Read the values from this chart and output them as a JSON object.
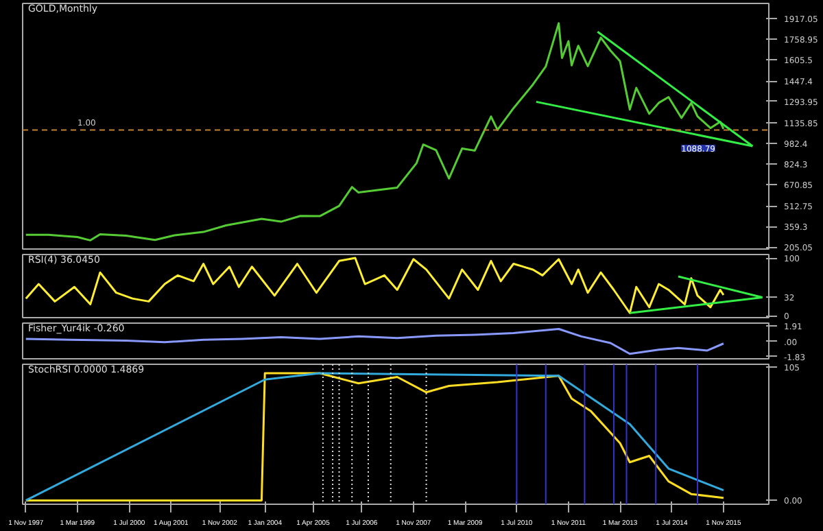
{
  "chart_data": [
    {
      "type": "line",
      "title": "GOLD,Monthly",
      "x": [
        "1997-11",
        "1998-06",
        "1999-03",
        "1999-07",
        "1999-10",
        "2000-06",
        "2001-03",
        "2001-09",
        "2002-06",
        "2003-01",
        "2003-12",
        "2004-06",
        "2004-12",
        "2005-06",
        "2005-12",
        "2006-04",
        "2006-06",
        "2006-12",
        "2007-06",
        "2007-12",
        "2008-02",
        "2008-06",
        "2008-10",
        "2009-02",
        "2009-06",
        "2009-11",
        "2010-01",
        "2010-06",
        "2010-12",
        "2011-04",
        "2011-08",
        "2011-09",
        "2011-11",
        "2011-12",
        "2012-02",
        "2012-05",
        "2012-09",
        "2012-12",
        "2013-03",
        "2013-06",
        "2013-08",
        "2013-12",
        "2014-03",
        "2014-06",
        "2014-10",
        "2015-01",
        "2015-03",
        "2015-07",
        "2015-10",
        "2015-11"
      ],
      "series": [
        {
          "color": "#55cc33",
          "values": [
            296,
            296,
            280,
            255,
            300,
            290,
            258,
            293,
            318,
            367,
            416,
            395,
            438,
            436,
            513,
            654,
            613,
            632,
            650,
            834,
            972,
            930,
            718,
            942,
            927,
            1182,
            1081,
            1244,
            1421,
            1556,
            1880,
            1620,
            1746,
            1565,
            1711,
            1559,
            1772,
            1675,
            1595,
            1234,
            1396,
            1202,
            1284,
            1327,
            1171,
            1283,
            1183,
            1095,
            1142,
            1088.79
          ]
        },
        {
          "color": "#33ee44",
          "x": [
            "2012-08",
            "2016-08"
          ],
          "values": [
            1816,
            960
          ]
        },
        {
          "color": "#33ee44",
          "x": [
            "2011-01",
            "2016-08"
          ],
          "values": [
            1292,
            960
          ]
        }
      ],
      "xlim": [
        "1997-10",
        "2017-01"
      ],
      "ylim": [
        190,
        2028
      ],
      "yticks": [
        205.05,
        359.3,
        512.75,
        670.85,
        824.3,
        982.4,
        1135.85,
        1293.95,
        1447.4,
        1605.5,
        1758.95,
        1917.05
      ],
      "ref_lines": [
        {
          "axis": "y",
          "value": 1081,
          "color": "#c08030",
          "line_style": "dashed"
        }
      ],
      "annotations": [
        {
          "text": "1088.79",
          "x": "2015-11",
          "y": 1088.79
        },
        "1.00"
      ],
      "tick_labels": "y",
      "grid": false
    },
    {
      "type": "line",
      "title": "RSI(4) 36.0450",
      "x": [
        "1997-11",
        "1998-03",
        "1998-08",
        "1999-02",
        "1999-07",
        "1999-10",
        "2000-03",
        "2000-08",
        "2001-01",
        "2001-06",
        "2001-10",
        "2002-03",
        "2002-06",
        "2002-09",
        "2003-02",
        "2003-05",
        "2003-09",
        "2004-04",
        "2004-11",
        "2005-05",
        "2005-12",
        "2006-05",
        "2006-08",
        "2007-02",
        "2007-06",
        "2007-11",
        "2008-03",
        "2008-10",
        "2009-02",
        "2009-07",
        "2009-11",
        "2010-02",
        "2010-06",
        "2010-12",
        "2011-03",
        "2011-08",
        "2011-12",
        "2012-02",
        "2012-05",
        "2012-09",
        "2013-01",
        "2013-06",
        "2013-08",
        "2013-12",
        "2014-03",
        "2014-06",
        "2014-11",
        "2015-01",
        "2015-03",
        "2015-07",
        "2015-10",
        "2015-11"
      ],
      "series": [
        {
          "color": "#ffee33",
          "values": [
            30,
            55,
            25,
            50,
            20,
            75,
            40,
            30,
            25,
            55,
            70,
            60,
            90,
            55,
            85,
            50,
            85,
            35,
            90,
            40,
            95,
            100,
            55,
            70,
            45,
            98,
            80,
            30,
            80,
            45,
            95,
            60,
            90,
            80,
            70,
            98,
            55,
            80,
            40,
            75,
            45,
            5,
            50,
            15,
            55,
            45,
            20,
            65,
            35,
            15,
            45,
            36.045
          ]
        },
        {
          "color": "#33ee44",
          "x": [
            "2014-09",
            "2016-11"
          ],
          "values": [
            68,
            32
          ]
        },
        {
          "color": "#33ee44",
          "x": [
            "2013-06",
            "2016-11"
          ],
          "values": [
            5,
            32
          ]
        }
      ],
      "xlim": [
        "1997-10",
        "2017-01"
      ],
      "ylim": [
        -3,
        106
      ],
      "yticks": [
        0,
        32,
        100
      ],
      "tick_labels": "y",
      "grid": false
    },
    {
      "type": "line",
      "title": "Fisher_Yur4ik -0.260",
      "x": [
        "1997-11",
        "1999-01",
        "2000-06",
        "2001-06",
        "2002-06",
        "2003-06",
        "2004-06",
        "2005-06",
        "2006-06",
        "2007-06",
        "2008-06",
        "2009-06",
        "2010-06",
        "2011-08",
        "2012-03",
        "2012-12",
        "2013-06",
        "2014-03",
        "2014-09",
        "2015-06",
        "2015-11"
      ],
      "series": [
        {
          "color": "#8899ff",
          "values": [
            0.3,
            0.2,
            0.1,
            -0.1,
            0.2,
            0.3,
            0.5,
            0.3,
            0.6,
            0.4,
            0.7,
            0.8,
            1.0,
            1.5,
            0.6,
            -0.2,
            -1.5,
            -1.0,
            -0.8,
            -1.1,
            -0.26
          ]
        }
      ],
      "xlim": [
        "1997-10",
        "2017-01"
      ],
      "ylim": [
        -2.1,
        2.2
      ],
      "yticks": [
        -1.83,
        {
          "value": 0,
          "label": ".00"
        },
        1.91
      ],
      "tick_labels": "y",
      "grid": false
    },
    {
      "type": "line",
      "title": "StochRSI 0.0000 1.4869",
      "x": [
        "1997-11",
        "2003-12",
        "2004-01",
        "2005-06",
        "2006-06",
        "2007-06",
        "2008-03",
        "2008-10",
        "2010-01",
        "2011-08",
        "2011-12",
        "2012-06",
        "2013-03",
        "2013-06",
        "2013-12",
        "2014-06",
        "2015-01",
        "2015-11"
      ],
      "series": [
        {
          "color": "#ffdd22",
          "values": [
            0,
            0,
            100,
            100,
            92,
            97,
            85,
            90,
            93,
            98,
            80,
            70,
            45,
            30,
            35,
            15,
            5,
            2
          ]
        },
        {
          "color": "#33aadd",
          "x": [
            "1997-11",
            "2004-01",
            "2005-06",
            "2011-08",
            "2013-06",
            "2014-06",
            "2015-11"
          ],
          "values": [
            0,
            95,
            100,
            98,
            60,
            25,
            8
          ]
        }
      ],
      "xlim": [
        "1997-10",
        "2017-01"
      ],
      "ylim": [
        -3,
        107
      ],
      "yticks": [
        {
          "value": 0,
          "label": "0.00"
        },
        105
      ],
      "xticks": [
        {
          "value": "1997-11-01",
          "label": "1 Nov 1997"
        },
        {
          "value": "1999-03-01",
          "label": "1 Mar 1999"
        },
        {
          "value": "2000-07-01",
          "label": "1 Jul 2000"
        },
        {
          "value": "2001-08-01",
          "label": "1 Aug 2001"
        },
        {
          "value": "2002-11-01",
          "label": "1 Nov 2002"
        },
        {
          "value": "2004-01-01",
          "label": "1 Jan 2004"
        },
        {
          "value": "2005-04-01",
          "label": "1 Apr 2005"
        },
        {
          "value": "2006-07-01",
          "label": "1 Jul 2006"
        },
        {
          "value": "2007-11-01",
          "label": "1 Nov 2007"
        },
        {
          "value": "2009-03-01",
          "label": "1 Mar 2009"
        },
        {
          "value": "2010-07-01",
          "label": "1 Jul 2010"
        },
        {
          "value": "2011-11-01",
          "label": "1 Nov 2011"
        },
        {
          "value": "2013-03-01",
          "label": "1 Mar 2013"
        },
        {
          "value": "2014-07-01",
          "label": "1 Jul 2014"
        },
        {
          "value": "2015-11-01",
          "label": "1 Nov 2015"
        }
      ],
      "ref_lines": [
        {
          "axis": "x",
          "value": "2005-07",
          "color": "#dddddd",
          "line_style": "dotted"
        },
        {
          "axis": "x",
          "value": "2005-10",
          "color": "#dddddd",
          "line_style": "dotted"
        },
        {
          "axis": "x",
          "value": "2005-12",
          "color": "#dddddd",
          "line_style": "dotted"
        },
        {
          "axis": "x",
          "value": "2006-04",
          "color": "#dddddd",
          "line_style": "dotted"
        },
        {
          "axis": "x",
          "value": "2006-09",
          "color": "#dddddd",
          "line_style": "dotted"
        },
        {
          "axis": "x",
          "value": "2007-04",
          "color": "#dddddd",
          "line_style": "dotted"
        },
        {
          "axis": "x",
          "value": "2008-03",
          "color": "#dddddd",
          "line_style": "dotted"
        },
        {
          "axis": "x",
          "value": "2010-07",
          "color": "#3333cc"
        },
        {
          "axis": "x",
          "value": "2011-04",
          "color": "#3333cc"
        },
        {
          "axis": "x",
          "value": "2012-04",
          "color": "#3333cc"
        },
        {
          "axis": "x",
          "value": "2013-01",
          "color": "#3333cc"
        },
        {
          "axis": "x",
          "value": "2013-05",
          "color": "#3333cc"
        },
        {
          "axis": "x",
          "value": "2014-02",
          "color": "#3333cc"
        },
        {
          "axis": "x",
          "value": "2015-03",
          "color": "#3333cc"
        }
      ],
      "grid": false
    }
  ]
}
